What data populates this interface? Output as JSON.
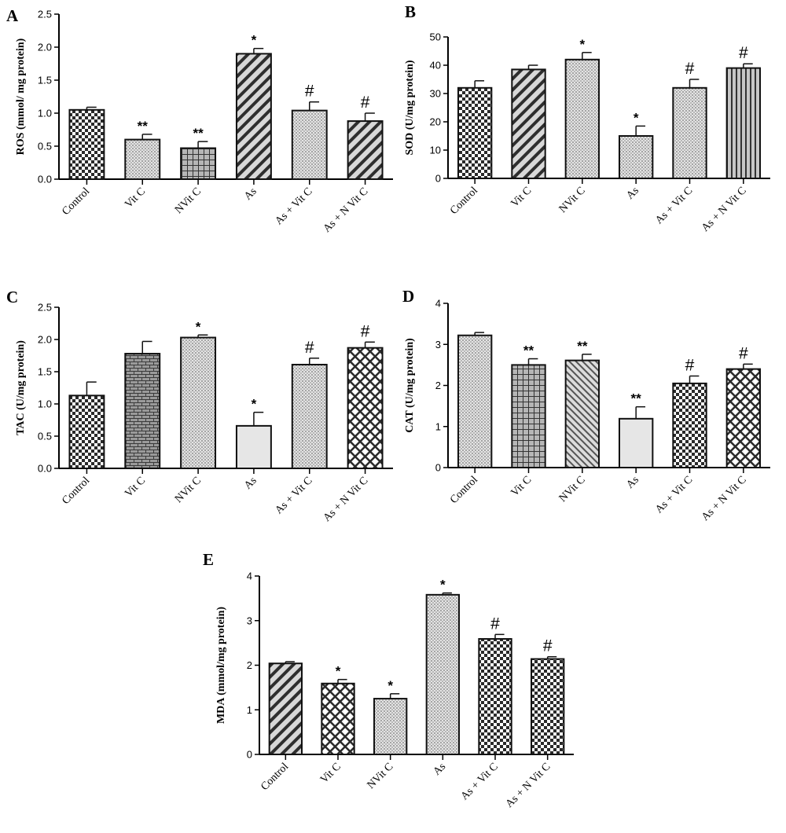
{
  "chart_data": [
    {
      "panel": "A",
      "type": "bar",
      "categories": [
        "Control",
        "Vit C",
        "NVit C",
        "As",
        "As + Vit C",
        "As + N Vit C"
      ],
      "values": [
        1.05,
        0.6,
        0.47,
        1.9,
        1.04,
        0.88
      ],
      "errors": [
        0.04,
        0.08,
        0.1,
        0.08,
        0.13,
        0.12
      ],
      "significance": [
        "",
        "**",
        "**",
        "*",
        "#",
        "#"
      ],
      "ylabel": "ROS (mmol/ mg protein)",
      "ylim": [
        0,
        2.5
      ],
      "yticks": [
        "0.0",
        "0.5",
        "1.0",
        "1.5",
        "2.0",
        "2.5"
      ],
      "patterns": [
        "check",
        "dots",
        "grid",
        "diag-r",
        "dots",
        "diag-r"
      ]
    },
    {
      "panel": "B",
      "type": "bar",
      "categories": [
        "Control",
        "Vit C",
        "NVit C",
        "As",
        "As + Vit C",
        "As + N Vit C"
      ],
      "values": [
        32,
        38.5,
        42,
        15,
        32,
        39
      ],
      "errors": [
        2.5,
        1.5,
        2.5,
        3.5,
        3,
        1.5
      ],
      "significance": [
        "",
        "",
        "*",
        "*",
        "#",
        "#"
      ],
      "ylabel": "SOD (U/mg protein)",
      "ylim": [
        0,
        50
      ],
      "yticks": [
        "0",
        "10",
        "20",
        "30",
        "40",
        "50"
      ],
      "patterns": [
        "check",
        "diag-r",
        "dots",
        "dots",
        "dots",
        "vlines"
      ]
    },
    {
      "panel": "C",
      "type": "bar",
      "categories": [
        "Control",
        "Vit C",
        "NVit C",
        "As",
        "As + Vit C",
        "As + N Vit C"
      ],
      "values": [
        1.13,
        1.78,
        2.03,
        0.66,
        1.61,
        1.87
      ],
      "errors": [
        0.21,
        0.19,
        0.04,
        0.21,
        0.1,
        0.09
      ],
      "significance": [
        "",
        "",
        "*",
        "*",
        "#",
        "#"
      ],
      "ylabel": "TAC (U/mg protein)",
      "ylim": [
        0,
        2.5
      ],
      "yticks": [
        "0.0",
        "0.5",
        "1.0",
        "1.5",
        "2.0",
        "2.5"
      ],
      "patterns": [
        "check",
        "brick",
        "dots",
        "plain",
        "dots",
        "diamond"
      ]
    },
    {
      "panel": "D",
      "type": "bar",
      "categories": [
        "Control",
        "Vit C",
        "NVit C",
        "As",
        "As + Vit C",
        "As + N Vit C"
      ],
      "values": [
        3.22,
        2.5,
        2.61,
        1.19,
        2.05,
        2.4
      ],
      "errors": [
        0.07,
        0.15,
        0.15,
        0.29,
        0.18,
        0.12
      ],
      "significance": [
        "",
        "**",
        "**",
        "**",
        "#",
        "#"
      ],
      "ylabel": "CAT (U/mg protein)",
      "ylim": [
        0,
        4
      ],
      "yticks": [
        "0",
        "1",
        "2",
        "3",
        "4"
      ],
      "patterns": [
        "dots",
        "grid",
        "diag-l",
        "plain",
        "check",
        "diamond"
      ]
    },
    {
      "panel": "E",
      "type": "bar",
      "categories": [
        "Control",
        "Vit C",
        "NVit C",
        "As",
        "As + Vit C",
        "As + N Vit C"
      ],
      "values": [
        2.04,
        1.59,
        1.25,
        3.58,
        2.59,
        2.14
      ],
      "errors": [
        0.04,
        0.09,
        0.11,
        0.04,
        0.1,
        0.05
      ],
      "significance": [
        "",
        "*",
        "*",
        "*",
        "#",
        "#"
      ],
      "ylabel": "MDA (mmol/mg protein)",
      "ylim": [
        0,
        4
      ],
      "yticks": [
        "0",
        "1",
        "2",
        "3",
        "4"
      ],
      "patterns": [
        "diag-r",
        "diamond",
        "dots",
        "dots",
        "check",
        "check"
      ]
    }
  ]
}
